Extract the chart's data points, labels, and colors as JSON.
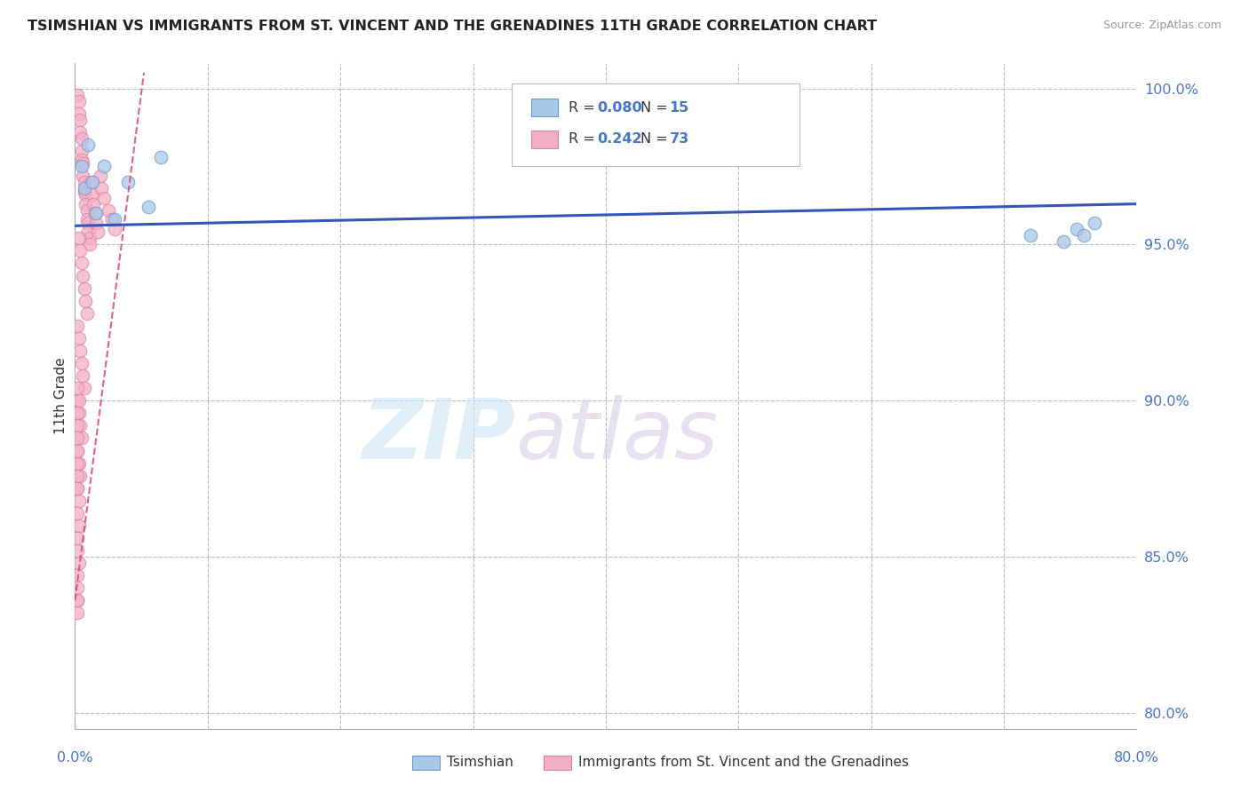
{
  "title": "TSIMSHIAN VS IMMIGRANTS FROM ST. VINCENT AND THE GRENADINES 11TH GRADE CORRELATION CHART",
  "source": "Source: ZipAtlas.com",
  "ylabel": "11th Grade",
  "blue_label": "Tsimshian",
  "pink_label": "Immigrants from St. Vincent and the Grenadines",
  "blue_R": "0.080",
  "blue_N": "15",
  "pink_R": "0.242",
  "pink_N": "73",
  "blue_color": "#a8c8e8",
  "pink_color": "#f4afc8",
  "blue_edge_color": "#6699cc",
  "pink_edge_color": "#e080a0",
  "blue_trend_color": "#3355bb",
  "pink_trend_color": "#dd4477",
  "xmin": 0.0,
  "xmax": 0.8,
  "ymin": 0.795,
  "ymax": 1.008,
  "yticks": [
    1.0,
    0.95,
    0.9,
    0.85,
    0.8
  ],
  "ytick_labels": [
    "100.0%",
    "95.0%",
    "90.0%",
    "85.0%",
    "80.0%"
  ],
  "blue_scatter_x": [
    0.005,
    0.007,
    0.01,
    0.013,
    0.016,
    0.022,
    0.03,
    0.04,
    0.055,
    0.065,
    0.72,
    0.745,
    0.755,
    0.76,
    0.768
  ],
  "blue_scatter_y": [
    0.975,
    0.968,
    0.982,
    0.97,
    0.96,
    0.975,
    0.958,
    0.97,
    0.962,
    0.978,
    0.953,
    0.951,
    0.955,
    0.953,
    0.957
  ],
  "pink_scatter_x": [
    0.002,
    0.003,
    0.003,
    0.004,
    0.004,
    0.005,
    0.005,
    0.005,
    0.006,
    0.006,
    0.007,
    0.007,
    0.008,
    0.008,
    0.009,
    0.009,
    0.01,
    0.01,
    0.011,
    0.011,
    0.012,
    0.013,
    0.014,
    0.015,
    0.016,
    0.017,
    0.019,
    0.02,
    0.022,
    0.025,
    0.028,
    0.03,
    0.003,
    0.004,
    0.005,
    0.006,
    0.007,
    0.008,
    0.009,
    0.002,
    0.003,
    0.004,
    0.005,
    0.006,
    0.007,
    0.002,
    0.003,
    0.004,
    0.005,
    0.002,
    0.003,
    0.004,
    0.002,
    0.003,
    0.002,
    0.003,
    0.002,
    0.002,
    0.003,
    0.002,
    0.002,
    0.002,
    0.002,
    0.002,
    0.003,
    0.002,
    0.002,
    0.002,
    0.002,
    0.002,
    0.002,
    0.002,
    0.002
  ],
  "pink_scatter_y": [
    0.998,
    0.996,
    0.992,
    0.99,
    0.986,
    0.984,
    0.98,
    0.977,
    0.976,
    0.972,
    0.97,
    0.967,
    0.966,
    0.963,
    0.961,
    0.958,
    0.957,
    0.954,
    0.952,
    0.95,
    0.97,
    0.966,
    0.963,
    0.96,
    0.957,
    0.954,
    0.972,
    0.968,
    0.965,
    0.961,
    0.958,
    0.955,
    0.952,
    0.948,
    0.944,
    0.94,
    0.936,
    0.932,
    0.928,
    0.924,
    0.92,
    0.916,
    0.912,
    0.908,
    0.904,
    0.9,
    0.896,
    0.892,
    0.888,
    0.884,
    0.88,
    0.876,
    0.872,
    0.868,
    0.864,
    0.86,
    0.856,
    0.852,
    0.848,
    0.844,
    0.84,
    0.836,
    0.832,
    0.904,
    0.9,
    0.896,
    0.892,
    0.888,
    0.884,
    0.88,
    0.876,
    0.872,
    0.836
  ],
  "blue_trend_x": [
    0.0,
    0.8
  ],
  "blue_trend_y": [
    0.956,
    0.963
  ],
  "pink_trend_x": [
    0.0,
    0.052
  ],
  "pink_trend_y": [
    0.836,
    1.005
  ]
}
